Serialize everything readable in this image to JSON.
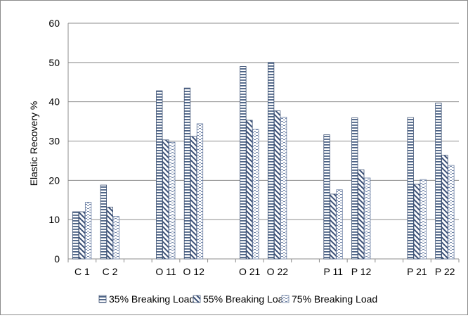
{
  "chart_data": {
    "type": "bar",
    "title": "",
    "xlabel": "",
    "ylabel": "Elastic Recovery %",
    "ylim": [
      0,
      60
    ],
    "yticks": [
      0,
      10,
      20,
      30,
      40,
      50,
      60
    ],
    "grid": "horizontal",
    "legend_position": "bottom",
    "categories": [
      "C 1",
      "C 2",
      "",
      "O 11",
      "O 12",
      "",
      "O 21",
      "O 22",
      "",
      "P 11",
      "P 12",
      "",
      "P 21",
      "P 22"
    ],
    "series": [
      {
        "name": "35% Breaking Load",
        "pattern": "horizontal-stripes",
        "color": "#4a6184",
        "values": [
          12,
          18.8,
          null,
          42.8,
          43.5,
          null,
          49,
          50,
          null,
          31.6,
          35.9,
          null,
          36,
          39.7
        ]
      },
      {
        "name": "55% Breaking Load",
        "pattern": "diagonal-stripes",
        "color": "#4a6184",
        "values": [
          12,
          13.2,
          null,
          30.3,
          31.2,
          null,
          35.3,
          37.7,
          null,
          16.5,
          22.7,
          null,
          19,
          26.4
        ]
      },
      {
        "name": "75% Breaking Load",
        "pattern": "dashed-lines",
        "color": "#6b7fa3",
        "values": [
          14.4,
          10.8,
          null,
          29.7,
          34.4,
          null,
          33,
          36.1,
          null,
          17.6,
          20.6,
          null,
          20.2,
          23.8
        ]
      }
    ]
  }
}
